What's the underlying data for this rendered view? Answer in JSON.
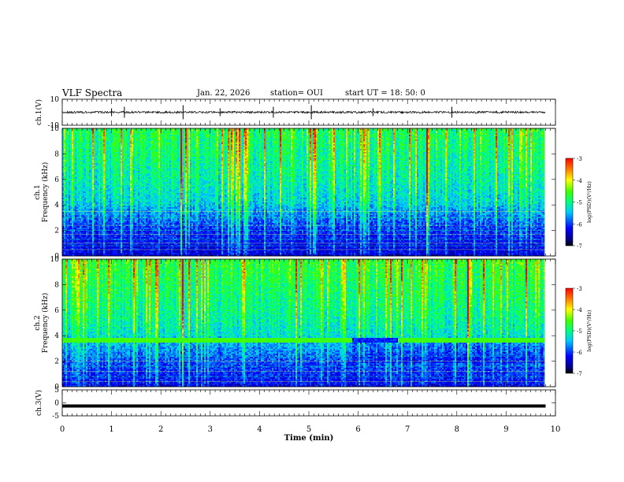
{
  "header": {
    "title": "VLF Spectra",
    "date": "Jan. 22, 2026",
    "station": "station= OUI",
    "start_ut": "start UT =  18: 50: 0"
  },
  "chart_data": [
    {
      "type": "line",
      "panel": "ch1-waveform",
      "ylabel": "ch.1(V)",
      "ylim": [
        -10,
        10
      ],
      "yticks": [
        10,
        -10
      ],
      "x_range": [
        0,
        9.8
      ],
      "baseline": 0,
      "amplitude_note": "noise around 0 V with sporadic spikes up to about ±5 V",
      "spikes": [
        1.0,
        1.26,
        2.45,
        3.2,
        4.28,
        5.05,
        6.3,
        7.9
      ]
    },
    {
      "type": "heatmap",
      "panel": "ch1-spectrogram",
      "ylabel": "ch.1 Frequency (kHz)",
      "ylim": [
        0,
        10
      ],
      "yticks": [
        0,
        2,
        4,
        6,
        8,
        10
      ],
      "x_range": [
        0,
        9.8
      ],
      "colorbar": {
        "label": "log(PSD)(V²/Hz)",
        "range": [
          -7,
          -3
        ],
        "ticks": [
          -3,
          -4,
          -5,
          -6,
          -7
        ]
      },
      "lines_khz": [
        0.5,
        0.8,
        1.0,
        1.3,
        1.7,
        2.0,
        2.4,
        3.0,
        3.5
      ]
    },
    {
      "type": "heatmap",
      "panel": "ch2-spectrogram",
      "ylabel": "ch.2 Frequency (kHz)",
      "ylim": [
        0,
        10
      ],
      "yticks": [
        0,
        2,
        4,
        6,
        8,
        10
      ],
      "x_range": [
        0,
        9.8
      ],
      "colorbar": {
        "label": "log(PSD)(V²/Hz)",
        "range": [
          -7,
          -3
        ],
        "ticks": [
          -3,
          -4,
          -5,
          -6,
          -7
        ]
      },
      "band_khz": [
        3.4,
        3.8
      ],
      "band_gap_min": [
        5.85,
        6.8
      ],
      "lines_khz": [
        0.4,
        0.8,
        1.2,
        1.6,
        2.0,
        2.4
      ]
    },
    {
      "type": "line",
      "panel": "ch3-waveform",
      "ylabel": "ch.3(V)",
      "ylim": [
        -5,
        5
      ],
      "yticks": [
        5,
        0,
        -5
      ],
      "x_range": [
        0,
        9.8
      ],
      "value": -1.2
    }
  ],
  "xaxis": {
    "label": "Time (min)",
    "ticks": [
      "0",
      "1",
      "2",
      "3",
      "4",
      "5",
      "6",
      "7",
      "8",
      "9",
      "10"
    ],
    "range": [
      0,
      10
    ]
  },
  "colors": {
    "colormap": [
      "#000080",
      "#0000ff",
      "#00bfff",
      "#00ffff",
      "#00ff80",
      "#80ff00",
      "#ffff00",
      "#ff8000",
      "#ff0000"
    ]
  }
}
